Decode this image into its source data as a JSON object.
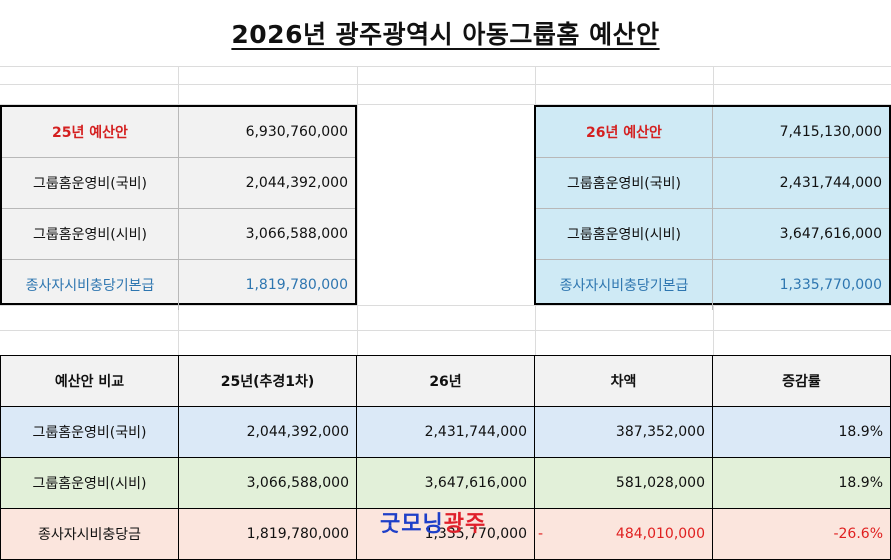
{
  "title": "2026년 광주광역시 아동그룹홈 예산안",
  "budget25": {
    "rows": [
      {
        "label": "25년 예산안",
        "value": "6,930,760,000"
      },
      {
        "label": "그룹홈운영비(국비)",
        "value": "2,044,392,000"
      },
      {
        "label": "그룹홈운영비(시비)",
        "value": "3,066,588,000"
      },
      {
        "label": "종사자시비충당기본급",
        "value": "1,819,780,000"
      }
    ]
  },
  "budget26": {
    "rows": [
      {
        "label": "26년 예산안",
        "value": "7,415,130,000"
      },
      {
        "label": "그룹홈운영비(국비)",
        "value": "2,431,744,000"
      },
      {
        "label": "그룹홈운영비(시비)",
        "value": "3,647,616,000"
      },
      {
        "label": "종사자시비충당기본급",
        "value": "1,335,770,000"
      }
    ]
  },
  "comparison": {
    "headers": [
      "예산안 비교",
      "25년(추경1차)",
      "26년",
      "차액",
      "증감률"
    ],
    "rows": [
      [
        "그룹홈운영비(국비)",
        "2,044,392,000",
        "2,431,744,000",
        "387,352,000",
        "18.9%"
      ],
      [
        "그룹홈운영비(시비)",
        "3,066,588,000",
        "3,647,616,000",
        "581,028,000",
        "18.9%"
      ],
      [
        "종사자시비충당금",
        "1,819,780,000",
        "1,335,770,000",
        "484,010,000",
        "-26.6%"
      ]
    ],
    "diff_sign_last": "-"
  },
  "watermark": {
    "part1": "굿모닝",
    "part2": "광주"
  },
  "colors": {
    "red_label": "#d42020",
    "blue_text": "#2e76b0",
    "box26_bg": "#cfeaf5"
  }
}
